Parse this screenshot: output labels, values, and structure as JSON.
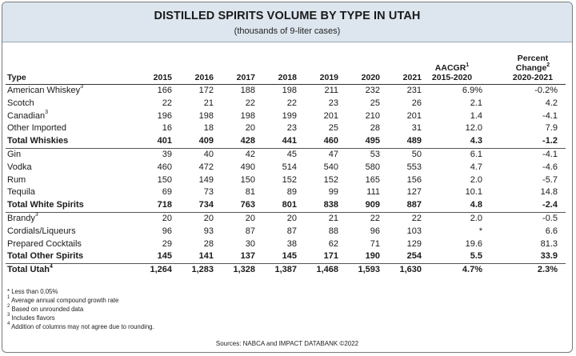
{
  "title": "DISTILLED SPIRITS VOLUME BY TYPE IN UTAH",
  "subtitle": "(thousands of 9-liter cases)",
  "columns": {
    "type": "Type",
    "years": [
      "2015",
      "2016",
      "2017",
      "2018",
      "2019",
      "2020",
      "2021"
    ],
    "aacgr_label": "AACGR",
    "aacgr_sup": "1",
    "aacgr_range": "2015-2020",
    "pct_line1": "Percent",
    "pct_line2": "Change",
    "pct_sup": "2",
    "pct_range": "2020-2021"
  },
  "rows": [
    {
      "label": "American Whiskey",
      "sup": "3",
      "values": [
        "166",
        "172",
        "188",
        "198",
        "211",
        "232",
        "231"
      ],
      "aacgr": "6.9%",
      "pct": "-0.2%",
      "total": false
    },
    {
      "label": "Scotch",
      "sup": "",
      "values": [
        "22",
        "21",
        "22",
        "22",
        "23",
        "25",
        "26"
      ],
      "aacgr": "2.1",
      "pct": "4.2",
      "total": false
    },
    {
      "label": "Canadian",
      "sup": "3",
      "values": [
        "196",
        "198",
        "198",
        "199",
        "201",
        "210",
        "201"
      ],
      "aacgr": "1.4",
      "pct": "-4.1",
      "total": false
    },
    {
      "label": "Other Imported",
      "sup": "",
      "values": [
        "16",
        "18",
        "20",
        "23",
        "25",
        "28",
        "31"
      ],
      "aacgr": "12.0",
      "pct": "7.9",
      "total": false
    },
    {
      "label": "Total Whiskies",
      "sup": "",
      "values": [
        "401",
        "409",
        "428",
        "441",
        "460",
        "495",
        "489"
      ],
      "aacgr": "4.3",
      "pct": "-1.2",
      "total": true
    },
    {
      "label": "Gin",
      "sup": "",
      "values": [
        "39",
        "40",
        "42",
        "45",
        "47",
        "53",
        "50"
      ],
      "aacgr": "6.1",
      "pct": "-4.1",
      "total": false
    },
    {
      "label": "Vodka",
      "sup": "",
      "values": [
        "460",
        "472",
        "490",
        "514",
        "540",
        "580",
        "553"
      ],
      "aacgr": "4.7",
      "pct": "-4.6",
      "total": false
    },
    {
      "label": "Rum",
      "sup": "",
      "values": [
        "150",
        "149",
        "150",
        "152",
        "152",
        "165",
        "156"
      ],
      "aacgr": "2.0",
      "pct": "-5.7",
      "total": false
    },
    {
      "label": "Tequila",
      "sup": "",
      "values": [
        "69",
        "73",
        "81",
        "89",
        "99",
        "111",
        "127"
      ],
      "aacgr": "10.1",
      "pct": "14.8",
      "total": false
    },
    {
      "label": "Total White Spirits",
      "sup": "",
      "values": [
        "718",
        "734",
        "763",
        "801",
        "838",
        "909",
        "887"
      ],
      "aacgr": "4.8",
      "pct": "-2.4",
      "total": true
    },
    {
      "label": "Brandy",
      "sup": "3",
      "values": [
        "20",
        "20",
        "20",
        "20",
        "21",
        "22",
        "22"
      ],
      "aacgr": "2.0",
      "pct": "-0.5",
      "total": false
    },
    {
      "label": "Cordials/Liqueurs",
      "sup": "",
      "values": [
        "96",
        "93",
        "87",
        "87",
        "88",
        "96",
        "103"
      ],
      "aacgr": "*",
      "pct": "6.6",
      "total": false
    },
    {
      "label": "Prepared Cocktails",
      "sup": "",
      "values": [
        "29",
        "28",
        "30",
        "38",
        "62",
        "71",
        "129"
      ],
      "aacgr": "19.6",
      "pct": "81.3",
      "total": false
    },
    {
      "label": "Total Other Spirits",
      "sup": "",
      "values": [
        "145",
        "141",
        "137",
        "145",
        "171",
        "190",
        "254"
      ],
      "aacgr": "5.5",
      "pct": "33.9",
      "total": true
    },
    {
      "label": "Total Utah",
      "sup": "4",
      "values": [
        "1,264",
        "1,283",
        "1,328",
        "1,387",
        "1,468",
        "1,593",
        "1,630"
      ],
      "aacgr": "4.7%",
      "pct": "2.3%",
      "total": true,
      "grand": true
    }
  ],
  "footnotes": [
    {
      "mark": "*",
      "text": "Less than 0.05%"
    },
    {
      "mark": "1",
      "text": "Average annual compound growth rate"
    },
    {
      "mark": "2",
      "text": "Based on unrounded data"
    },
    {
      "mark": "3",
      "text": "Includes flavors"
    },
    {
      "mark": "4",
      "text": "Addition of columns may not agree due to rounding."
    }
  ],
  "source": "Sources: NABCA and IMPACT DATABANK ©2022"
}
